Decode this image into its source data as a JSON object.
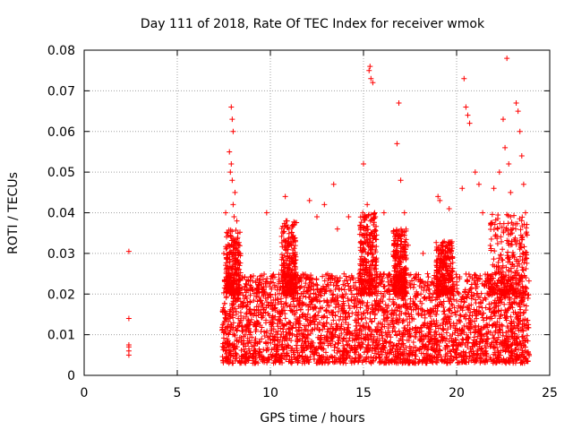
{
  "chart_data": {
    "type": "scatter",
    "title": "Day 111 of 2018, Rate Of TEC Index for receiver wmok",
    "xlabel": "GPS time / hours",
    "ylabel": "ROTI / TECUs",
    "xlim": [
      0,
      25
    ],
    "ylim": [
      0,
      0.08
    ],
    "xticks": [
      0,
      5,
      10,
      15,
      20,
      25
    ],
    "yticks": [
      0,
      0.01,
      0.02,
      0.03,
      0.04,
      0.05,
      0.06,
      0.07,
      0.08
    ],
    "grid": true,
    "marker": "plus",
    "color": "#ff0000",
    "series": [
      {
        "x": [
          2.4,
          2.4,
          2.4,
          2.4,
          2.4,
          2.4,
          7.5,
          7.6,
          7.7,
          7.8,
          7.9,
          7.95,
          8.0,
          8.1,
          8.2,
          8.3,
          7.85,
          7.9,
          7.95,
          8.0,
          8.05,
          9.8,
          10.8,
          10.9,
          11.0,
          11.1,
          11.2,
          12.1,
          12.5,
          12.9,
          13.4,
          13.6,
          14.2,
          15.0,
          15.2,
          15.3,
          15.35,
          15.4,
          15.5,
          15.6,
          16.1,
          16.8,
          16.9,
          17.0,
          17.2,
          17.4,
          18.2,
          19.0,
          19.1,
          19.6,
          20.3,
          20.4,
          20.5,
          20.6,
          20.7,
          21.0,
          21.2,
          21.4,
          22.0,
          22.3,
          22.5,
          22.6,
          22.7,
          22.8,
          22.9,
          23.2,
          23.3,
          23.4,
          23.5,
          23.6,
          23.7
        ],
        "y": [
          0.0305,
          0.014,
          0.0075,
          0.007,
          0.006,
          0.005,
          0.03,
          0.04,
          0.035,
          0.055,
          0.066,
          0.063,
          0.06,
          0.045,
          0.038,
          0.032,
          0.05,
          0.052,
          0.048,
          0.042,
          0.039,
          0.04,
          0.044,
          0.038,
          0.036,
          0.033,
          0.03,
          0.043,
          0.039,
          0.042,
          0.047,
          0.036,
          0.039,
          0.052,
          0.042,
          0.075,
          0.076,
          0.073,
          0.072,
          0.04,
          0.04,
          0.057,
          0.067,
          0.048,
          0.04,
          0.032,
          0.03,
          0.044,
          0.043,
          0.041,
          0.046,
          0.073,
          0.066,
          0.064,
          0.062,
          0.05,
          0.047,
          0.04,
          0.046,
          0.05,
          0.063,
          0.056,
          0.078,
          0.052,
          0.045,
          0.067,
          0.065,
          0.06,
          0.054,
          0.047,
          0.04
        ]
      }
    ],
    "dense_clouds": [
      {
        "x": [
          7.4,
          23.9
        ],
        "y": [
          0.003,
          0.025
        ]
      },
      {
        "x": [
          7.6,
          8.4
        ],
        "y": [
          0.02,
          0.036
        ]
      },
      {
        "x": [
          10.6,
          11.4
        ],
        "y": [
          0.02,
          0.038
        ]
      },
      {
        "x": [
          14.8,
          15.7
        ],
        "y": [
          0.02,
          0.04
        ]
      },
      {
        "x": [
          16.6,
          17.3
        ],
        "y": [
          0.02,
          0.036
        ]
      },
      {
        "x": [
          18.9,
          19.8
        ],
        "y": [
          0.02,
          0.033
        ]
      },
      {
        "x": [
          21.8,
          23.8
        ],
        "y": [
          0.02,
          0.04
        ]
      }
    ]
  }
}
